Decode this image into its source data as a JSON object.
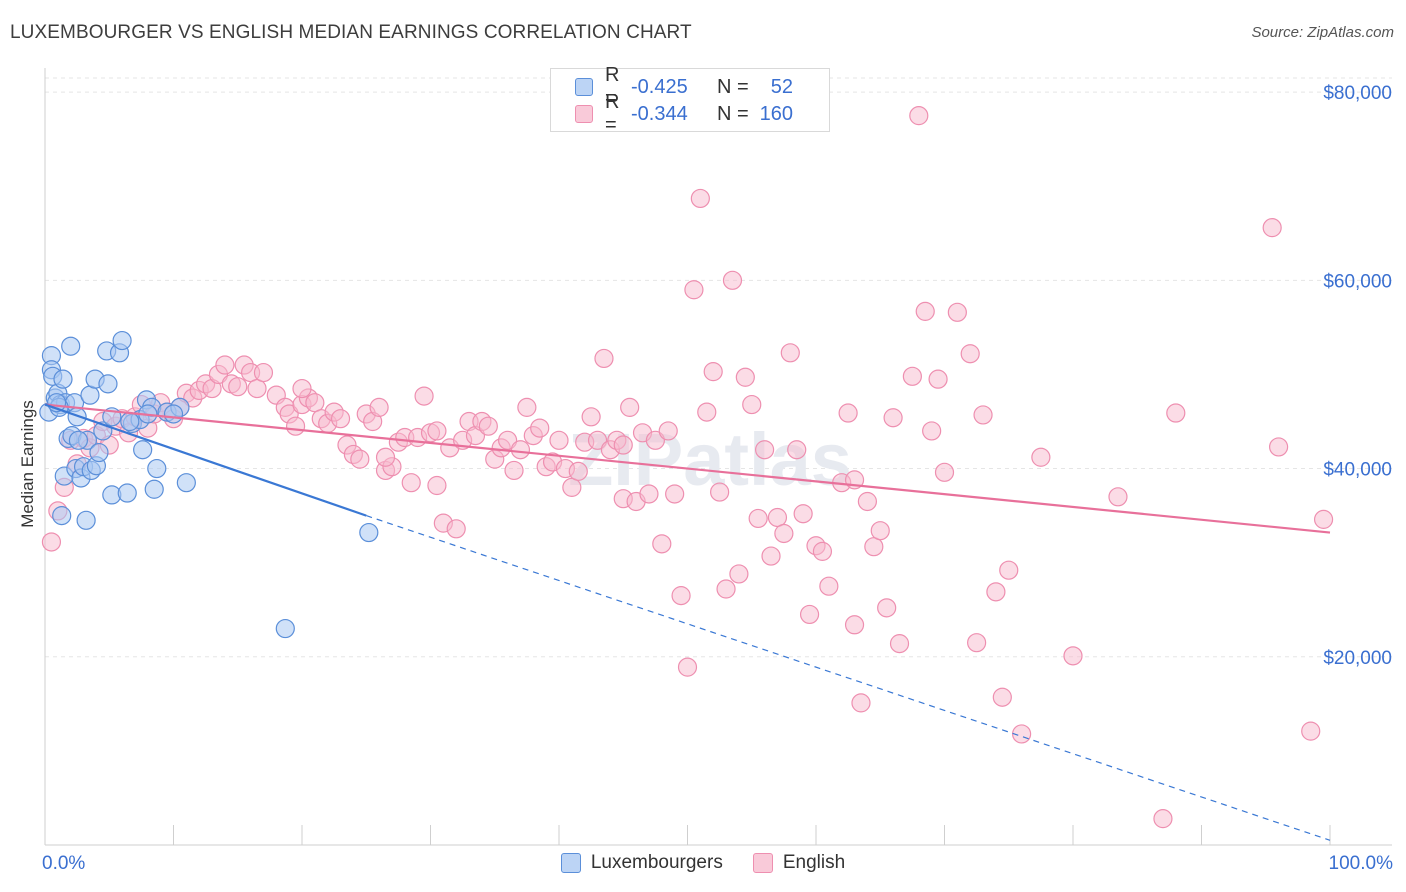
{
  "header": {
    "title": "LUXEMBOURGER VS ENGLISH MEDIAN EARNINGS CORRELATION CHART",
    "source": "Source: ZipAtlas.com"
  },
  "legend": {
    "luxembourgers": {
      "r_label": "R =",
      "r_value": "-0.425",
      "n_label": "N =",
      "n_value": "52"
    },
    "english": {
      "r_label": "R =",
      "r_value": "-0.344",
      "n_label": "N =",
      "n_value": "160"
    }
  },
  "bottom_legend": {
    "series1": "Luxembourgers",
    "series2": "English"
  },
  "colors": {
    "lux_fill": "#a9c8f2",
    "lux_stroke": "#5b8fd9",
    "lux_line": "#3a78d4",
    "eng_fill": "#f7b9cd",
    "eng_stroke": "#ee8fb0",
    "eng_line": "#e8709a",
    "axis_text": "#3a6fd0",
    "grid": "#e5e5e5"
  },
  "chart_data": {
    "type": "scatter",
    "title": "LUXEMBOURGER VS ENGLISH MEDIAN EARNINGS CORRELATION CHART",
    "xlabel": "",
    "ylabel": "Median Earnings",
    "x_tick_labels": [
      "0.0%",
      "100.0%"
    ],
    "y_tick_labels": [
      "$20,000",
      "$40,000",
      "$60,000",
      "$80,000"
    ],
    "y_ticks": [
      20000,
      40000,
      60000,
      80000
    ],
    "xlim": [
      0,
      100
    ],
    "ylim": [
      0,
      81500
    ],
    "grid": true,
    "legend_position": "top-center",
    "watermark": "ZIPatlas",
    "series": [
      {
        "name": "Luxembourgers",
        "r": -0.425,
        "n": 52,
        "trend": {
          "x0": 0,
          "y0": 46800,
          "x1": 25,
          "y1": 35000,
          "dashed_to_x": 100,
          "dashed_to_y": 500
        },
        "points": [
          [
            0.3,
            46000
          ],
          [
            0.5,
            52000
          ],
          [
            0.5,
            50500
          ],
          [
            0.6,
            49800
          ],
          [
            0.8,
            47500
          ],
          [
            1.0,
            48000
          ],
          [
            1.2,
            46800
          ],
          [
            1.4,
            49500
          ],
          [
            1.6,
            47000
          ],
          [
            1.8,
            43200
          ],
          [
            2.0,
            53000
          ],
          [
            2.1,
            43500
          ],
          [
            2.3,
            47000
          ],
          [
            2.5,
            45500
          ],
          [
            1.5,
            39200
          ],
          [
            2.4,
            40000
          ],
          [
            2.8,
            39000
          ],
          [
            3.0,
            40200
          ],
          [
            3.3,
            43000
          ],
          [
            3.5,
            47800
          ],
          [
            3.6,
            39800
          ],
          [
            3.9,
            49500
          ],
          [
            4.0,
            40300
          ],
          [
            4.2,
            41700
          ],
          [
            4.5,
            44000
          ],
          [
            4.8,
            52500
          ],
          [
            4.9,
            49000
          ],
          [
            5.2,
            45500
          ],
          [
            5.2,
            37200
          ],
          [
            5.8,
            52300
          ],
          [
            6.0,
            53600
          ],
          [
            6.4,
            37400
          ],
          [
            6.8,
            44800
          ],
          [
            7.4,
            45200
          ],
          [
            7.6,
            42000
          ],
          [
            7.9,
            47300
          ],
          [
            8.3,
            46500
          ],
          [
            8.5,
            37800
          ],
          [
            8.7,
            40000
          ],
          [
            9.5,
            46000
          ],
          [
            10.5,
            46500
          ],
          [
            11.0,
            38500
          ],
          [
            1.3,
            35000
          ],
          [
            3.2,
            34500
          ],
          [
            18.7,
            23000
          ],
          [
            25.2,
            33200
          ],
          [
            1.1,
            46500
          ],
          [
            2.6,
            43000
          ],
          [
            0.9,
            47000
          ],
          [
            6.6,
            45000
          ],
          [
            8.0,
            45800
          ],
          [
            10.0,
            45800
          ]
        ]
      },
      {
        "name": "English",
        "r": -0.344,
        "n": 160,
        "trend": {
          "x0": 0,
          "y0": 46800,
          "x1": 100,
          "y1": 33200
        },
        "points": [
          [
            0.5,
            32200
          ],
          [
            1.0,
            35500
          ],
          [
            1.5,
            38000
          ],
          [
            2.0,
            43000
          ],
          [
            2.5,
            40500
          ],
          [
            3.0,
            43200
          ],
          [
            3.5,
            42200
          ],
          [
            4.0,
            43500
          ],
          [
            4.5,
            45000
          ],
          [
            5.0,
            42500
          ],
          [
            5.5,
            44500
          ],
          [
            6.0,
            45300
          ],
          [
            6.5,
            43800
          ],
          [
            7.0,
            45500
          ],
          [
            7.5,
            46800
          ],
          [
            8.0,
            44300
          ],
          [
            8.5,
            45800
          ],
          [
            9.0,
            47000
          ],
          [
            9.5,
            46000
          ],
          [
            10.0,
            45300
          ],
          [
            10.5,
            46500
          ],
          [
            11.0,
            48000
          ],
          [
            11.5,
            47500
          ],
          [
            12.0,
            48300
          ],
          [
            12.5,
            49000
          ],
          [
            13.0,
            48500
          ],
          [
            13.5,
            50000
          ],
          [
            14.0,
            51000
          ],
          [
            14.5,
            49000
          ],
          [
            15.0,
            48700
          ],
          [
            15.5,
            51000
          ],
          [
            16.0,
            50200
          ],
          [
            16.5,
            48500
          ],
          [
            17.0,
            50200
          ],
          [
            18.0,
            47800
          ],
          [
            18.7,
            46500
          ],
          [
            19.0,
            45800
          ],
          [
            19.5,
            44500
          ],
          [
            20.0,
            46800
          ],
          [
            20.5,
            47500
          ],
          [
            21.0,
            47000
          ],
          [
            21.5,
            45300
          ],
          [
            22.0,
            44800
          ],
          [
            22.5,
            46000
          ],
          [
            23.0,
            45300
          ],
          [
            23.5,
            42500
          ],
          [
            24.0,
            41500
          ],
          [
            24.5,
            41000
          ],
          [
            25.0,
            45800
          ],
          [
            25.5,
            45000
          ],
          [
            26.0,
            46500
          ],
          [
            26.5,
            39800
          ],
          [
            27.0,
            40200
          ],
          [
            27.5,
            42800
          ],
          [
            28.0,
            43300
          ],
          [
            28.5,
            38500
          ],
          [
            29.0,
            43300
          ],
          [
            29.5,
            47700
          ],
          [
            30.0,
            43800
          ],
          [
            30.5,
            38200
          ],
          [
            31.0,
            34200
          ],
          [
            31.5,
            42200
          ],
          [
            32.0,
            33600
          ],
          [
            32.5,
            43000
          ],
          [
            33.0,
            45000
          ],
          [
            33.5,
            43500
          ],
          [
            34.0,
            45000
          ],
          [
            34.5,
            44500
          ],
          [
            35.0,
            41000
          ],
          [
            35.5,
            42200
          ],
          [
            36.0,
            43000
          ],
          [
            36.5,
            39800
          ],
          [
            37.0,
            42000
          ],
          [
            37.5,
            46500
          ],
          [
            38.0,
            43500
          ],
          [
            38.5,
            44300
          ],
          [
            39.0,
            40200
          ],
          [
            39.5,
            40700
          ],
          [
            40.0,
            43000
          ],
          [
            40.5,
            40000
          ],
          [
            41.0,
            38000
          ],
          [
            41.5,
            39700
          ],
          [
            42.0,
            42800
          ],
          [
            42.5,
            45500
          ],
          [
            43.0,
            43000
          ],
          [
            43.5,
            51700
          ],
          [
            44.0,
            42000
          ],
          [
            44.5,
            43000
          ],
          [
            45.0,
            36800
          ],
          [
            45.5,
            46500
          ],
          [
            46.0,
            36500
          ],
          [
            46.5,
            43800
          ],
          [
            47.0,
            37300
          ],
          [
            47.5,
            43000
          ],
          [
            48.0,
            32000
          ],
          [
            48.5,
            44000
          ],
          [
            49.0,
            37300
          ],
          [
            49.5,
            26500
          ],
          [
            50.0,
            18900
          ],
          [
            50.5,
            59000
          ],
          [
            51.0,
            68700
          ],
          [
            51.5,
            46000
          ],
          [
            52.0,
            50300
          ],
          [
            52.5,
            37500
          ],
          [
            53.0,
            27200
          ],
          [
            53.5,
            60000
          ],
          [
            54.0,
            28800
          ],
          [
            54.5,
            49700
          ],
          [
            55.0,
            46800
          ],
          [
            55.5,
            34700
          ],
          [
            56.0,
            42000
          ],
          [
            56.5,
            30700
          ],
          [
            57.0,
            34800
          ],
          [
            57.5,
            33100
          ],
          [
            58.0,
            52300
          ],
          [
            58.5,
            42000
          ],
          [
            59.0,
            35200
          ],
          [
            59.5,
            24500
          ],
          [
            60.0,
            31800
          ],
          [
            60.5,
            31200
          ],
          [
            61.0,
            27500
          ],
          [
            62.0,
            38500
          ],
          [
            62.5,
            45900
          ],
          [
            63.0,
            23400
          ],
          [
            63.5,
            15100
          ],
          [
            64.0,
            36500
          ],
          [
            64.5,
            31700
          ],
          [
            65.0,
            33400
          ],
          [
            65.5,
            25200
          ],
          [
            66.0,
            45400
          ],
          [
            66.5,
            21400
          ],
          [
            67.5,
            49800
          ],
          [
            68.5,
            56700
          ],
          [
            69.0,
            44000
          ],
          [
            69.5,
            49500
          ],
          [
            70.0,
            39600
          ],
          [
            71.0,
            56600
          ],
          [
            72.0,
            52200
          ],
          [
            72.5,
            21500
          ],
          [
            73.0,
            45700
          ],
          [
            74.0,
            26900
          ],
          [
            74.5,
            15700
          ],
          [
            75.0,
            29200
          ],
          [
            76.0,
            11800
          ],
          [
            77.5,
            41200
          ],
          [
            80.0,
            20100
          ],
          [
            83.5,
            37000
          ],
          [
            87.0,
            2800
          ],
          [
            88.0,
            45900
          ],
          [
            95.5,
            65600
          ],
          [
            96.0,
            42300
          ],
          [
            98.5,
            12100
          ],
          [
            99.5,
            34600
          ],
          [
            68.0,
            77500
          ],
          [
            63.0,
            38800
          ],
          [
            45.0,
            42500
          ],
          [
            30.5,
            44000
          ],
          [
            26.5,
            41200
          ],
          [
            20.0,
            48500
          ]
        ]
      }
    ]
  }
}
